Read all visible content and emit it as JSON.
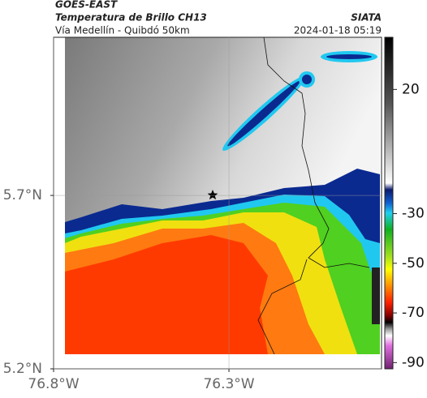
{
  "header": {
    "source": "GOES-EAST",
    "title": "Temperatura de Brillo CH13",
    "subtitle": "Vía Medellín - Quibdó 50km",
    "agency": "SIATA",
    "timestamp": "2024-01-18 05:19"
  },
  "map": {
    "xlim": [
      -76.8,
      -75.865
    ],
    "ylim": [
      5.2,
      6.156
    ],
    "xticks": [
      {
        "value": -76.8,
        "label": "76.8°W"
      },
      {
        "value": -76.3,
        "label": "76.3°W"
      }
    ],
    "yticks": [
      {
        "value": 5.7,
        "label": "5.7°N"
      },
      {
        "value": 5.2,
        "label": "5.2°N"
      }
    ]
  },
  "colorbar": {
    "lim": [
      41,
      -92.5
    ],
    "ticks": [
      20,
      -30,
      -50,
      -70,
      -90
    ]
  }
}
